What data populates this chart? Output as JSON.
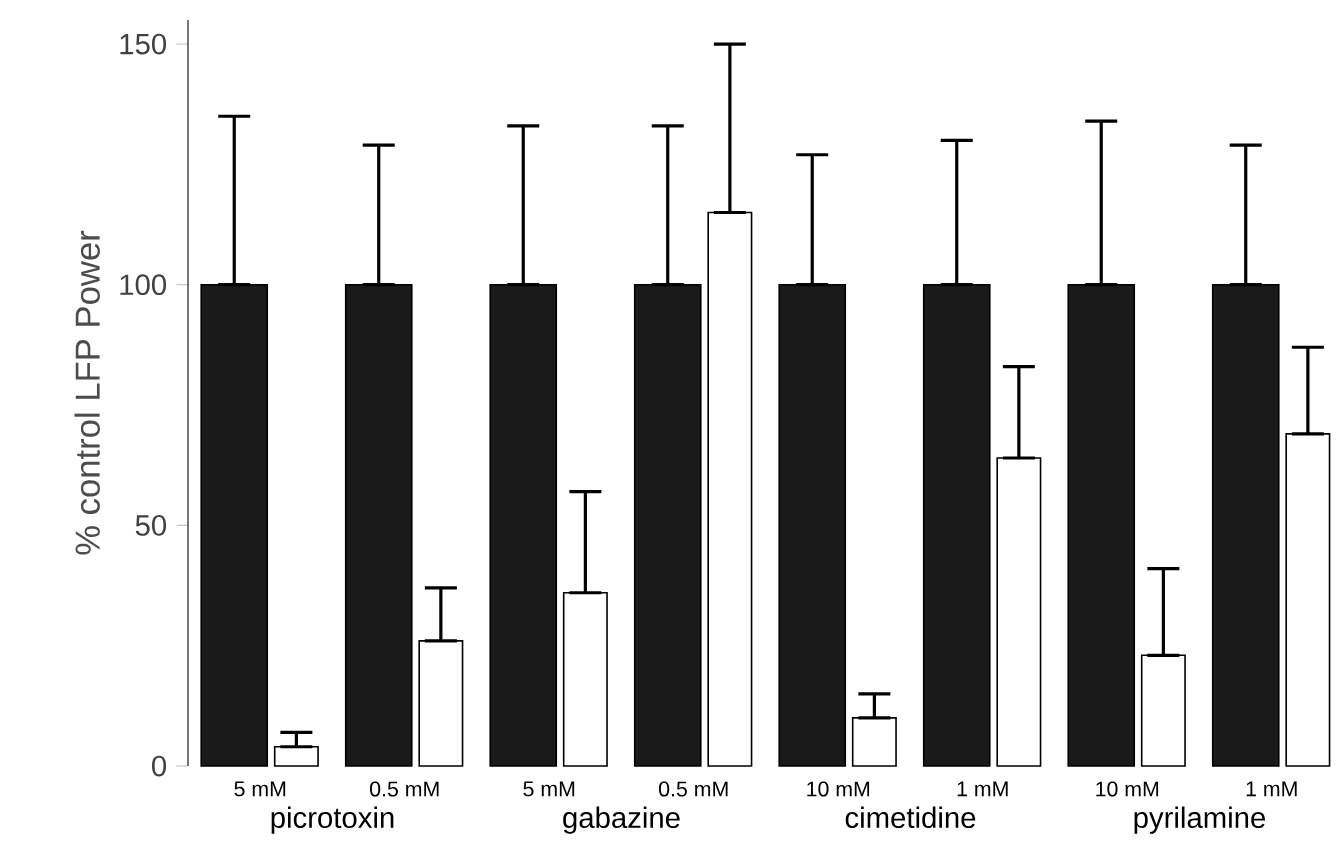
{
  "chart_data": {
    "type": "bar",
    "ylabel": "% control LFP Power",
    "categories": [
      "5 mM",
      "0.5 mM",
      "5 mM",
      "0.5 mM",
      "10 mM",
      "1 mM",
      "10 mM",
      "1 mM"
    ],
    "series": [
      {
        "color": "#1a1a1a",
        "values": [
          100,
          100,
          100,
          100,
          100,
          100,
          100,
          100
        ],
        "errors": [
          [
            100,
            135
          ],
          [
            100,
            129
          ],
          [
            100,
            133
          ],
          [
            100,
            133
          ],
          [
            100,
            127
          ],
          [
            100,
            130
          ],
          [
            100,
            134
          ],
          [
            100,
            129
          ]
        ]
      },
      {
        "color": "#ffffff",
        "values": [
          4,
          26,
          36,
          115,
          10,
          64,
          23,
          69
        ],
        "errors": [
          [
            4,
            7
          ],
          [
            26,
            37
          ],
          [
            36,
            57
          ],
          [
            115,
            150
          ],
          [
            10,
            15
          ],
          [
            64,
            83
          ],
          [
            23,
            41
          ],
          [
            69,
            87
          ]
        ]
      }
    ],
    "annotations": [
      "picrotoxin",
      "gabazine",
      "cimetidine",
      "pyrilamine"
    ],
    "ylim": [
      0,
      155
    ],
    "yticks": [
      0,
      50,
      100,
      150
    ]
  }
}
